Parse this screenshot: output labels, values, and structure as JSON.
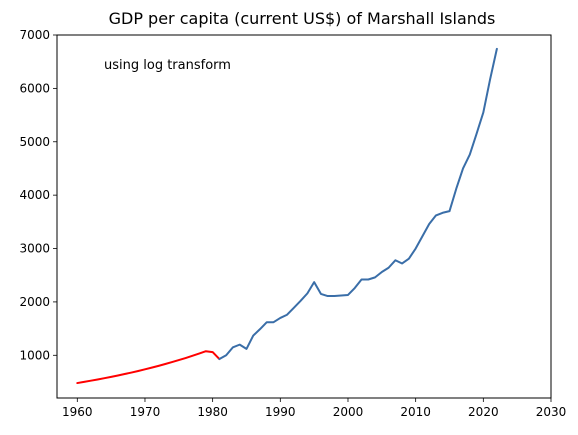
{
  "chart_data": {
    "type": "line",
    "title": "GDP per capita (current US$) of Marshall Islands",
    "xlabel": "",
    "ylabel": "",
    "annotation": "using log transform",
    "xlim": [
      1957,
      2030
    ],
    "ylim": [
      200,
      7000
    ],
    "x_ticks": [
      1960,
      1970,
      1980,
      1990,
      2000,
      2010,
      2020,
      2030
    ],
    "y_ticks": [
      1000,
      2000,
      3000,
      4000,
      5000,
      6000,
      7000
    ],
    "grid": false,
    "series": [
      {
        "color": "#ff0000",
        "x": [
          1960,
          1961,
          1962,
          1963,
          1964,
          1965,
          1966,
          1967,
          1968,
          1969,
          1970,
          1971,
          1972,
          1973,
          1974,
          1975,
          1976,
          1977,
          1978,
          1979,
          1980,
          1981
        ],
        "values": [
          480,
          502,
          524,
          547,
          571,
          596,
          622,
          649,
          677,
          706,
          737,
          769,
          802,
          837,
          873,
          910,
          949,
          990,
          1032,
          1076,
          1060,
          930
        ]
      },
      {
        "color": "#3a6ea8",
        "x": [
          1981,
          1982,
          1983,
          1984,
          1985,
          1986,
          1987,
          1988,
          1989,
          1990,
          1991,
          1992,
          1993,
          1994,
          1995,
          1996,
          1997,
          1998,
          1999,
          2000,
          2001,
          2002,
          2003,
          2004,
          2005,
          2006,
          2007,
          2008,
          2009,
          2010,
          2011,
          2012,
          2013,
          2014,
          2015,
          2016,
          2017,
          2018,
          2019,
          2020,
          2021,
          2022
        ],
        "values": [
          930,
          1000,
          1150,
          1200,
          1120,
          1370,
          1490,
          1620,
          1620,
          1700,
          1760,
          1890,
          2020,
          2160,
          2370,
          2150,
          2110,
          2110,
          2120,
          2130,
          2260,
          2420,
          2420,
          2460,
          2560,
          2640,
          2780,
          2720,
          2810,
          3000,
          3230,
          3460,
          3620,
          3670,
          3700,
          4120,
          4500,
          4760,
          5150,
          5550,
          6170,
          6740
        ]
      }
    ]
  }
}
